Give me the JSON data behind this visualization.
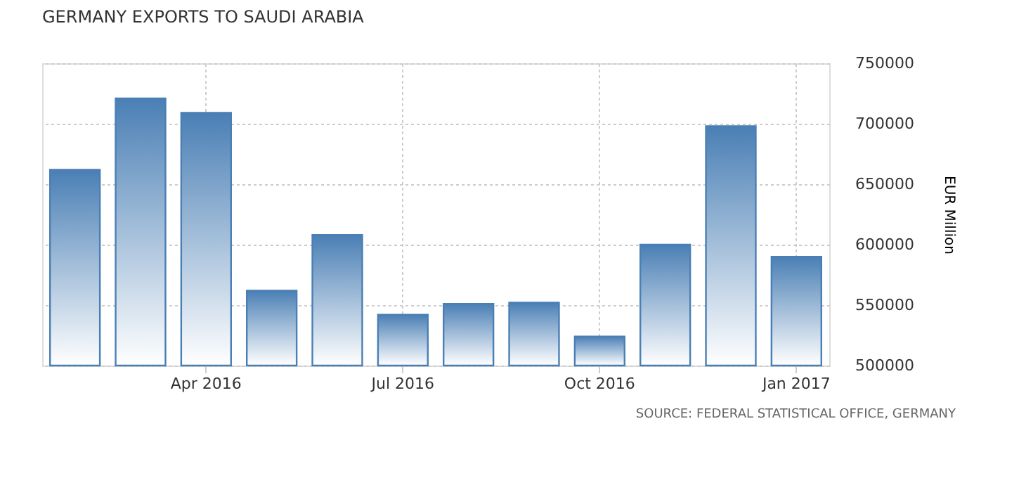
{
  "chart_data": {
    "type": "bar",
    "title": "GERMANY EXPORTS TO SAUDI ARABIA",
    "categories": [
      null,
      null,
      "Apr 2016",
      null,
      null,
      "Jul 2016",
      null,
      null,
      "Oct 2016",
      null,
      null,
      "Jan 2017"
    ],
    "values": [
      662000,
      721000,
      709000,
      562000,
      608000,
      542000,
      551000,
      552000,
      524000,
      600000,
      698000,
      590000
    ],
    "color": "#4a7fb5",
    "ylabel": "EUR Million",
    "ylim": [
      500000,
      750000
    ],
    "yticks": [
      500000,
      550000,
      600000,
      650000,
      700000,
      750000
    ],
    "grid": true,
    "annotations": [
      "SOURCE: FEDERAL STATISTICAL OFFICE, GERMANY"
    ]
  }
}
